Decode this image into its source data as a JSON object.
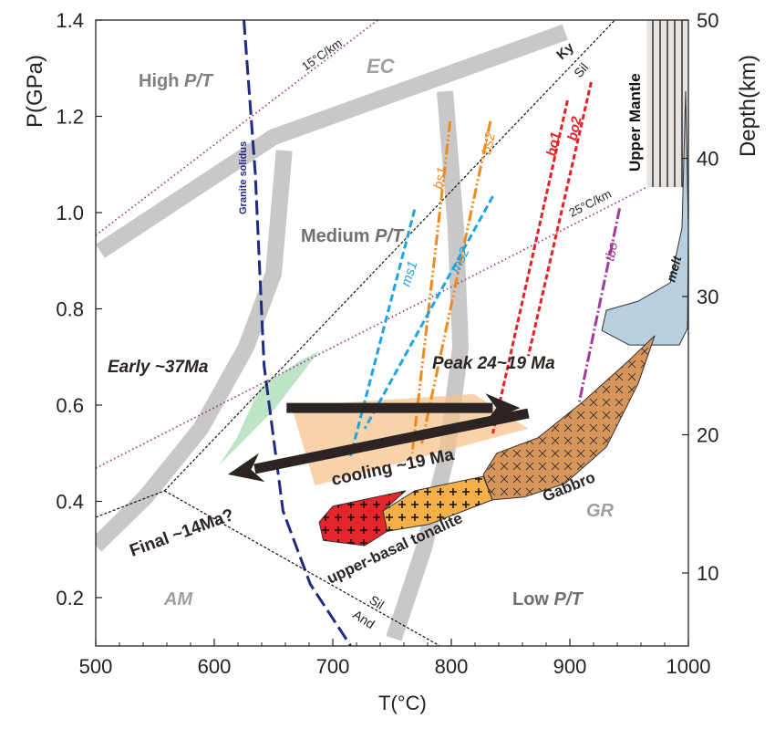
{
  "chart_data": {
    "type": "line",
    "xlabel": "T(°C)",
    "ylabel": "P(GPa)",
    "y2label": "Depth(km)",
    "xlim": [
      500,
      1000
    ],
    "ylim": [
      0.1,
      1.4
    ],
    "y2lim_ticks": [
      10,
      20,
      30,
      40,
      50
    ],
    "xticks": [
      "500",
      "600",
      "700",
      "800",
      "900",
      "1000"
    ],
    "yticks": [
      "0.2",
      "0.4",
      "0.6",
      "0.8",
      "1.0",
      "1.2",
      "1.4"
    ],
    "y2ticks": [
      "10",
      "20",
      "30",
      "40",
      "50"
    ],
    "grid": false,
    "colors": {
      "facies": "#c8c8c8",
      "solidus": "#1e2a84",
      "geotherm": "#9b3b8e",
      "aluminosilicate": "#111111",
      "bs": "#f0891d",
      "ms": "#1ea3e3",
      "bo": "#e42127",
      "tbo": "#a23a97",
      "melt": "#b7cfdf",
      "gabbro": "#d6955a",
      "tonalite": "#f6b04a",
      "upper_basal": "#e5262b",
      "early_field": "#a8dbb4",
      "peak_field": "#f5c38e",
      "arrow": "#2b2422"
    },
    "facies_boundaries": [
      {
        "points": [
          [
            503.8,
            0.92
          ],
          [
            650,
            1.157
          ],
          [
            896,
            1.375
          ]
        ]
      },
      {
        "points": [
          [
            659,
            1.129
          ],
          [
            650,
            0.873
          ],
          [
            627,
            0.721
          ],
          [
            588.5,
            0.551
          ],
          [
            542,
            0.409
          ],
          [
            500,
            0.308
          ]
        ]
      },
      {
        "points": [
          [
            794.6,
            1.252
          ],
          [
            803.8,
            0.968
          ],
          [
            807.7,
            0.721
          ],
          [
            796,
            0.494
          ],
          [
            777,
            0.304
          ],
          [
            751.5,
            0.115
          ]
        ]
      }
    ],
    "lines": [
      {
        "name": "Granite solidus",
        "style": "solidus",
        "points": [
          [
            625,
            1.4
          ],
          [
            634.6,
            1.081
          ],
          [
            642,
            0.683
          ],
          [
            658,
            0.38
          ],
          [
            681,
            0.228
          ],
          [
            715,
            0.1
          ]
        ]
      },
      {
        "name": "15°C/km",
        "style": "geotherm",
        "points": [
          [
            500,
            0.953
          ],
          [
            738,
            1.4
          ]
        ]
      },
      {
        "name": "25°C/km",
        "style": "geotherm",
        "points": [
          [
            500,
            0.469
          ],
          [
            965,
            1.053
          ]
        ]
      },
      {
        "name": "Ky-Sil",
        "style": "aluminosilicate",
        "points": [
          [
            558,
            0.422
          ],
          [
            938,
            1.4
          ]
        ]
      },
      {
        "name": "Sil-And",
        "style": "aluminosilicate",
        "points": [
          [
            558,
            0.422
          ],
          [
            790,
            0.1
          ]
        ]
      },
      {
        "name": "And-Ky",
        "style": "aluminosilicate",
        "points": [
          [
            500,
            0.367
          ],
          [
            558,
            0.422
          ]
        ]
      },
      {
        "name": "bs1",
        "style": "bs",
        "points": [
          [
            799,
            1.19
          ],
          [
            767,
            0.5
          ]
        ]
      },
      {
        "name": "bs2",
        "style": "bs",
        "points": [
          [
            833,
            1.19
          ],
          [
            775,
            0.52
          ]
        ]
      },
      {
        "name": "ms1",
        "style": "ms",
        "points": [
          [
            769,
            1.006
          ],
          [
            715,
            0.494
          ]
        ]
      },
      {
        "name": "ms2",
        "style": "ms",
        "points": [
          [
            835,
            1.034
          ],
          [
            727,
            0.551
          ]
        ]
      },
      {
        "name": "bo1",
        "style": "bo",
        "points": [
          [
            898,
            1.233
          ],
          [
            835,
            0.541
          ]
        ]
      },
      {
        "name": "bo2",
        "style": "bo",
        "points": [
          [
            918,
            1.271
          ],
          [
            865,
            0.702
          ]
        ]
      },
      {
        "name": "tbo",
        "style": "tbo",
        "points": [
          [
            942,
            1.009
          ],
          [
            908,
            0.607
          ]
        ]
      }
    ],
    "fields": [
      {
        "name": "Early ~37Ma",
        "style": "early_field",
        "points": [
          [
            688.5,
            0.712
          ],
          [
            650,
            0.589
          ],
          [
            604,
            0.475
          ],
          [
            619,
            0.532
          ],
          [
            638.5,
            0.636
          ],
          [
            673,
            0.693
          ]
        ]
      },
      {
        "name": "Peak 24~19 Ma",
        "style": "peak_field",
        "points": [
          [
            665,
            0.598
          ],
          [
            819,
            0.623
          ],
          [
            865,
            0.551
          ],
          [
            685,
            0.433
          ]
        ]
      },
      {
        "name": "melt",
        "style": "melt",
        "points": [
          [
            997.7,
            1.252
          ],
          [
            994.6,
            0.968
          ],
          [
            984.6,
            0.854
          ],
          [
            957.7,
            0.816
          ],
          [
            930.8,
            0.797
          ],
          [
            926.9,
            0.755
          ],
          [
            950,
            0.725
          ],
          [
            992.3,
            0.725
          ],
          [
            999.2,
            0.759
          ],
          [
            1000,
            0.968
          ]
        ]
      },
      {
        "name": "Gabbro",
        "style": "gabbro",
        "pattern": "x",
        "points": [
          [
            971.5,
            0.744
          ],
          [
            950,
            0.693
          ],
          [
            911.5,
            0.608
          ],
          [
            873,
            0.532
          ],
          [
            838.5,
            0.5
          ],
          [
            827,
            0.456
          ],
          [
            834.6,
            0.403
          ],
          [
            861.5,
            0.409
          ],
          [
            896,
            0.437
          ],
          [
            930.8,
            0.513
          ],
          [
            957.7,
            0.645
          ]
        ]
      },
      {
        "name": "tonalite",
        "style": "tonalite",
        "pattern": "plus",
        "points": [
          [
            742.3,
            0.38
          ],
          [
            769.2,
            0.422
          ],
          [
            827,
            0.452
          ],
          [
            834.6,
            0.403
          ],
          [
            780.8,
            0.352
          ],
          [
            746,
            0.338
          ]
        ]
      },
      {
        "name": "upper-basal",
        "style": "upper_basal",
        "pattern": "plus",
        "points": [
          [
            700,
            0.39
          ],
          [
            761.5,
            0.422
          ],
          [
            742.3,
            0.38
          ],
          [
            746,
            0.338
          ],
          [
            727,
            0.308
          ],
          [
            692,
            0.319
          ],
          [
            688.5,
            0.357
          ]
        ]
      }
    ],
    "upper_mantle_box": {
      "T": [
        965,
        1000
      ],
      "P": [
        1.053,
        1.4
      ]
    },
    "arrows": [
      {
        "name": "heating",
        "from": [
          661,
          0.594
        ],
        "to": [
          858,
          0.594
        ]
      },
      {
        "name": "cooling",
        "from": [
          865,
          0.583
        ],
        "to": [
          611.5,
          0.456
        ]
      }
    ],
    "labels": {
      "high_pt": "High ",
      "high_pt_it": "P/T",
      "medium_pt": "Medium ",
      "medium_pt_it": "P/T",
      "low_pt": "Low ",
      "low_pt_it": "P/T",
      "ec": "EC",
      "am": "AM",
      "gr": "GR",
      "g15": "15°C/km",
      "g25": "25°C/km",
      "ky": "Ky",
      "sil": "Sil",
      "sil2": "Sil",
      "and": "And",
      "solidus": "Granite solidus",
      "upper_mantle": "Upper Mantle",
      "melt": "melt",
      "bs1": "bs1",
      "bs2": "bs2",
      "ms1": "ms1",
      "ms2": "ms2",
      "bo1": "bo1",
      "bo2": "bo2",
      "tbo": "tbo",
      "early": "Early ~37Ma",
      "peak": "Peak 24~19 Ma",
      "cooling": "cooling ~19 Ma",
      "final": "Final  ~14Ma?",
      "tonalite": "upper-basal tonalite",
      "gabbro": "Gabbro"
    }
  }
}
